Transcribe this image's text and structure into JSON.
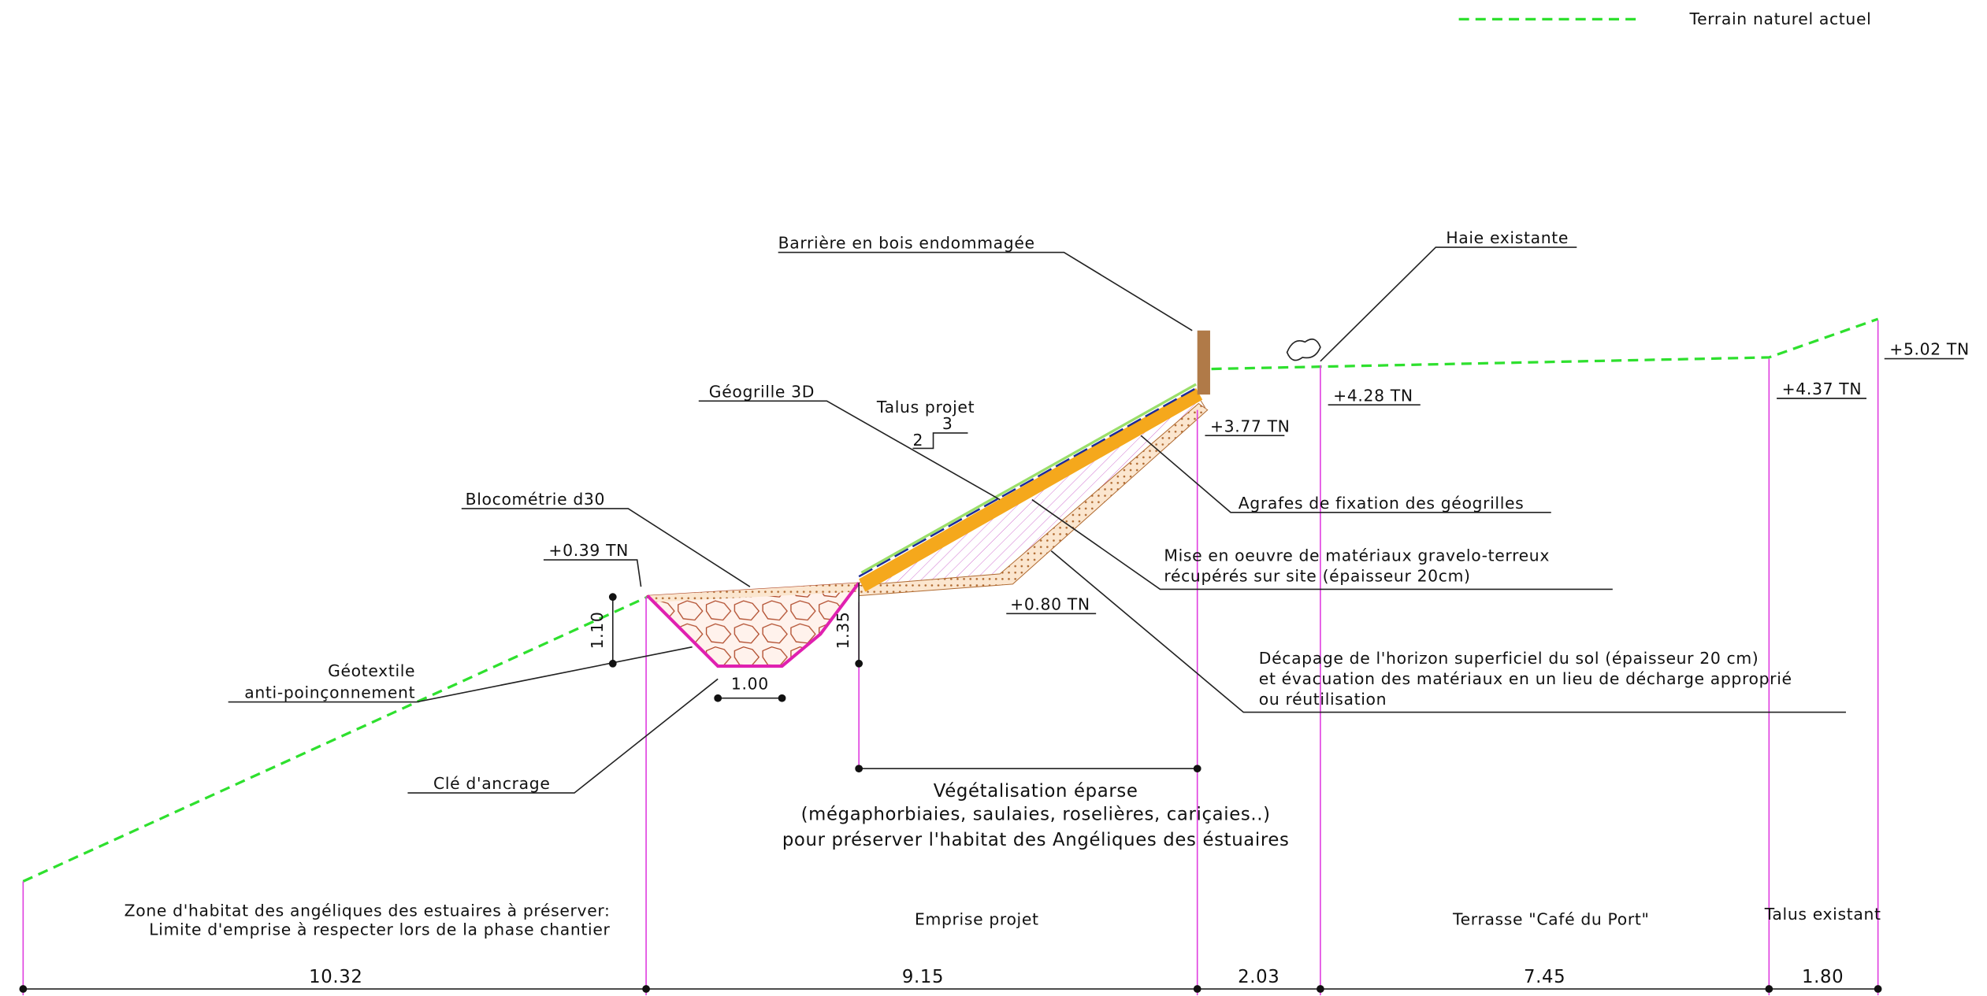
{
  "legend": {
    "label": "Terrain naturel actuel"
  },
  "callouts": {
    "barriere": "Barrière en bois endommagée",
    "haie": "Haie existante",
    "geogrille": "Géogrille 3D",
    "talus_projet": "Talus projet",
    "slope_h": "3",
    "slope_v": "2",
    "blocometrie": "Blocométrie d30",
    "geotextile": [
      "Géotextile",
      "anti-poinçonnement"
    ],
    "cle": "Clé d'ancrage",
    "agrafes": "Agrafes de fixation des géogrilles",
    "mise": [
      "Mise en oeuvre de matériaux gravelo-terreux",
      "récupérés sur site (épaisseur 20cm)"
    ],
    "decapage": [
      "Décapage de l'horizon superficiel du sol (épaisseur 20 cm)",
      "et évacuation des matériaux en un lieu de décharge approprié",
      "ou réutilisation"
    ],
    "vegetalisation": [
      "Végétalisation éparse",
      "(mégaphorbiaies, saulaies, roselières, cariçaies..)",
      "pour préserver l'habitat des Angéliques des éstuaires"
    ]
  },
  "elevations": {
    "e039": "+0.39 TN",
    "e080": "+0.80 TN",
    "e377": "+3.77 TN",
    "e428": "+4.28 TN",
    "e437": "+4.37 TN",
    "e502": "+5.02 TN"
  },
  "local_dims": {
    "h110": "1.10",
    "h135": "1.35",
    "w100": "1.00"
  },
  "zones": {
    "habitat": [
      "Zone d'habitat des angéliques des estuaires à préserver:",
      "Limite d'emprise à respecter lors de la phase chantier"
    ],
    "emprise": "Emprise projet",
    "terrasse": "Terrasse  \"Café du Port\"",
    "talus": "Talus existant"
  },
  "bottom_dims": [
    "10.32",
    "9.15",
    "2.03",
    "7.45",
    "1.80"
  ]
}
